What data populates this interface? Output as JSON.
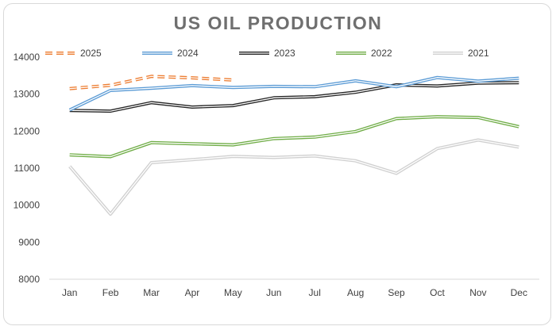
{
  "chart_data": {
    "type": "line",
    "title": "US OIL PRODUCTION",
    "xlabel": "",
    "ylabel": "",
    "categories": [
      "Jan",
      "Feb",
      "Mar",
      "Apr",
      "May",
      "Jun",
      "Jul",
      "Aug",
      "Sep",
      "Oct",
      "Nov",
      "Dec"
    ],
    "ylim": [
      8000,
      14000
    ],
    "yticks": [
      8000,
      9000,
      10000,
      11000,
      12000,
      13000,
      14000
    ],
    "grid": false,
    "legend_position": "top",
    "series": [
      {
        "name": "2025",
        "color": "#ED7D31",
        "dashed": true,
        "values": [
          13150,
          13240,
          13480,
          13440,
          13380,
          null,
          null,
          null,
          null,
          null,
          null,
          null
        ]
      },
      {
        "name": "2024",
        "color": "#5B9BD5",
        "dashed": false,
        "values": [
          12570,
          13100,
          13160,
          13230,
          13180,
          13210,
          13200,
          13360,
          13200,
          13450,
          13350,
          13430
        ]
      },
      {
        "name": "2023",
        "color": "#262626",
        "dashed": false,
        "values": [
          12560,
          12540,
          12770,
          12650,
          12690,
          12900,
          12930,
          13050,
          13250,
          13220,
          13300,
          13310
        ]
      },
      {
        "name": "2022",
        "color": "#70AD47",
        "dashed": false,
        "values": [
          11360,
          11310,
          11690,
          11660,
          11630,
          11800,
          11840,
          11990,
          12340,
          12390,
          12370,
          12120
        ]
      },
      {
        "name": "2021",
        "color": "#D0D0D0",
        "dashed": false,
        "values": [
          11050,
          9760,
          11150,
          11230,
          11320,
          11290,
          11330,
          11200,
          10860,
          11530,
          11760,
          11570
        ]
      }
    ]
  }
}
